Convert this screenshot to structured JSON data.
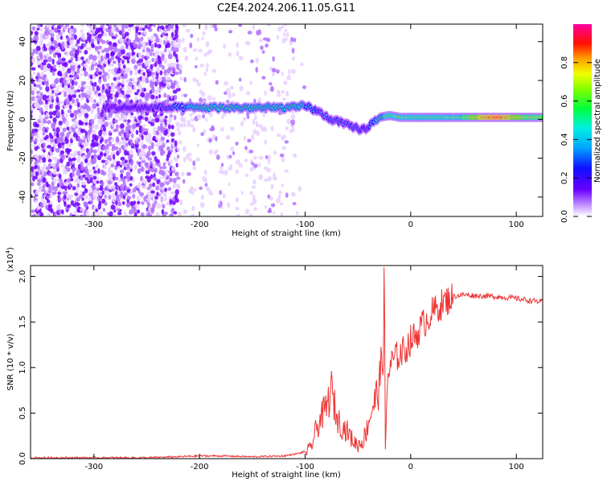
{
  "figure": {
    "title": "C2E4.2024.206.11.05.G11"
  },
  "colormap": [
    "#ffffff",
    "#e8d0ff",
    "#b070ff",
    "#7000ff",
    "#2000ff",
    "#0060ff",
    "#00d0ff",
    "#00ff80",
    "#40ff00",
    "#c0ff00",
    "#ffd000",
    "#ff6000",
    "#ff0000",
    "#ff0090"
  ],
  "chart_data": [
    {
      "type": "heatmap",
      "title": "",
      "xlabel": "Height of straight line (km)",
      "ylabel": "Frequency (Hz)",
      "xlim": [
        -360,
        125
      ],
      "ylim": [
        -50,
        49
      ],
      "xticks": [
        -300,
        -200,
        -100,
        0,
        100
      ],
      "yticks": [
        -40,
        -20,
        0,
        20,
        40
      ],
      "colorbar": {
        "label": "Normalized spectral amplitude",
        "range": [
          0.0,
          1.0
        ],
        "ticks": [
          "0.0",
          "0.2",
          "0.4",
          "0.6",
          "0.8"
        ]
      },
      "ridge_track": {
        "x": [
          -290,
          -250,
          -220,
          -200,
          -160,
          -130,
          -110,
          -100,
          -95,
          -85,
          -75,
          -65,
          -55,
          -48,
          -44,
          -40,
          -35,
          -30,
          -20,
          -10,
          0,
          20,
          50,
          80,
          100,
          125
        ],
        "frequency": [
          6,
          6,
          6,
          6,
          6,
          6,
          6,
          7,
          6,
          3,
          0,
          -2,
          -4,
          -5,
          -5,
          -4,
          -1,
          1,
          2,
          1,
          1,
          1,
          1,
          1,
          1,
          1
        ],
        "amplitude": [
          0.2,
          0.25,
          0.4,
          0.5,
          0.5,
          0.5,
          0.5,
          0.45,
          0.4,
          0.35,
          0.35,
          0.35,
          0.35,
          0.3,
          0.3,
          0.35,
          0.4,
          0.5,
          0.55,
          0.6,
          0.55,
          0.55,
          0.6,
          0.9,
          0.7,
          0.6
        ]
      }
    },
    {
      "type": "line",
      "title": "",
      "xlabel": "Height of straight line (km)",
      "ylabel": "SNR (10 * v/v)",
      "scale_label": "(x10",
      "scale_exponent": "4",
      "xlim": [
        -360,
        125
      ],
      "ylim": [
        0,
        2.12
      ],
      "xticks": [
        -300,
        -200,
        -100,
        0,
        100
      ],
      "yticks": [
        "0.0",
        "0.5",
        "1.0",
        "1.5",
        "2.0"
      ],
      "series": [
        {
          "color": "#ee3333",
          "x": [
            -360,
            -300,
            -250,
            -220,
            -200,
            -180,
            -150,
            -120,
            -105,
            -95,
            -90,
            -85,
            -80,
            -75,
            -70,
            -65,
            -60,
            -55,
            -50,
            -45,
            -42,
            -38,
            -35,
            -32,
            -30,
            -28,
            -26,
            -25,
            -24,
            -22,
            -20,
            -18,
            -15,
            -10,
            -5,
            0,
            5,
            10,
            20,
            30,
            40,
            50,
            60,
            80,
            100,
            110,
            125
          ],
          "y": [
            0.01,
            0.01,
            0.01,
            0.02,
            0.03,
            0.03,
            0.02,
            0.03,
            0.06,
            0.1,
            0.3,
            0.45,
            0.55,
            0.75,
            0.45,
            0.35,
            0.3,
            0.2,
            0.15,
            0.2,
            0.3,
            0.5,
            0.6,
            0.7,
            0.8,
            1.0,
            1.05,
            2.1,
            0.05,
            0.9,
            1.0,
            1.05,
            1.1,
            1.15,
            1.2,
            1.3,
            1.35,
            1.45,
            1.6,
            1.7,
            1.78,
            1.8,
            1.79,
            1.78,
            1.76,
            1.74,
            1.72
          ]
        }
      ]
    }
  ]
}
